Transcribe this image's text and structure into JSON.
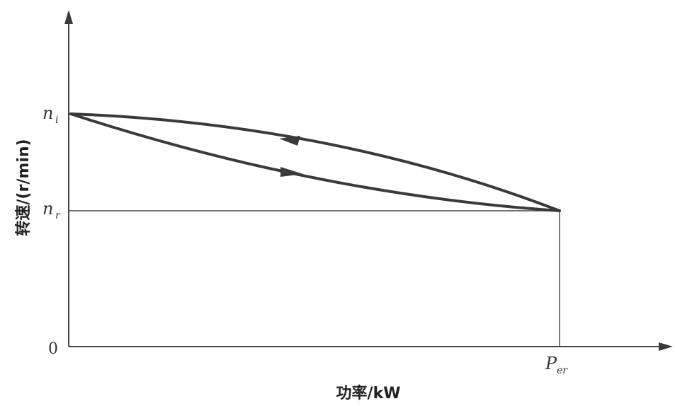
{
  "diagram": {
    "y_axis_label": "转速/(r/min)",
    "x_axis_label": "功率/kW",
    "origin_label": "0",
    "y_ticks": [
      {
        "symbol": "n",
        "subscript": "i"
      },
      {
        "symbol": "n",
        "subscript": "r"
      }
    ],
    "x_ticks": [
      {
        "symbol": "P",
        "subscript": "er"
      }
    ],
    "curves": [
      {
        "name": "upper-curve",
        "from": "P_er, n_r",
        "to": "0, n_i",
        "arrow_direction": "left"
      },
      {
        "name": "lower-curve",
        "from": "0, n_i",
        "to": "P_er, n_r",
        "arrow_direction": "right"
      }
    ]
  }
}
